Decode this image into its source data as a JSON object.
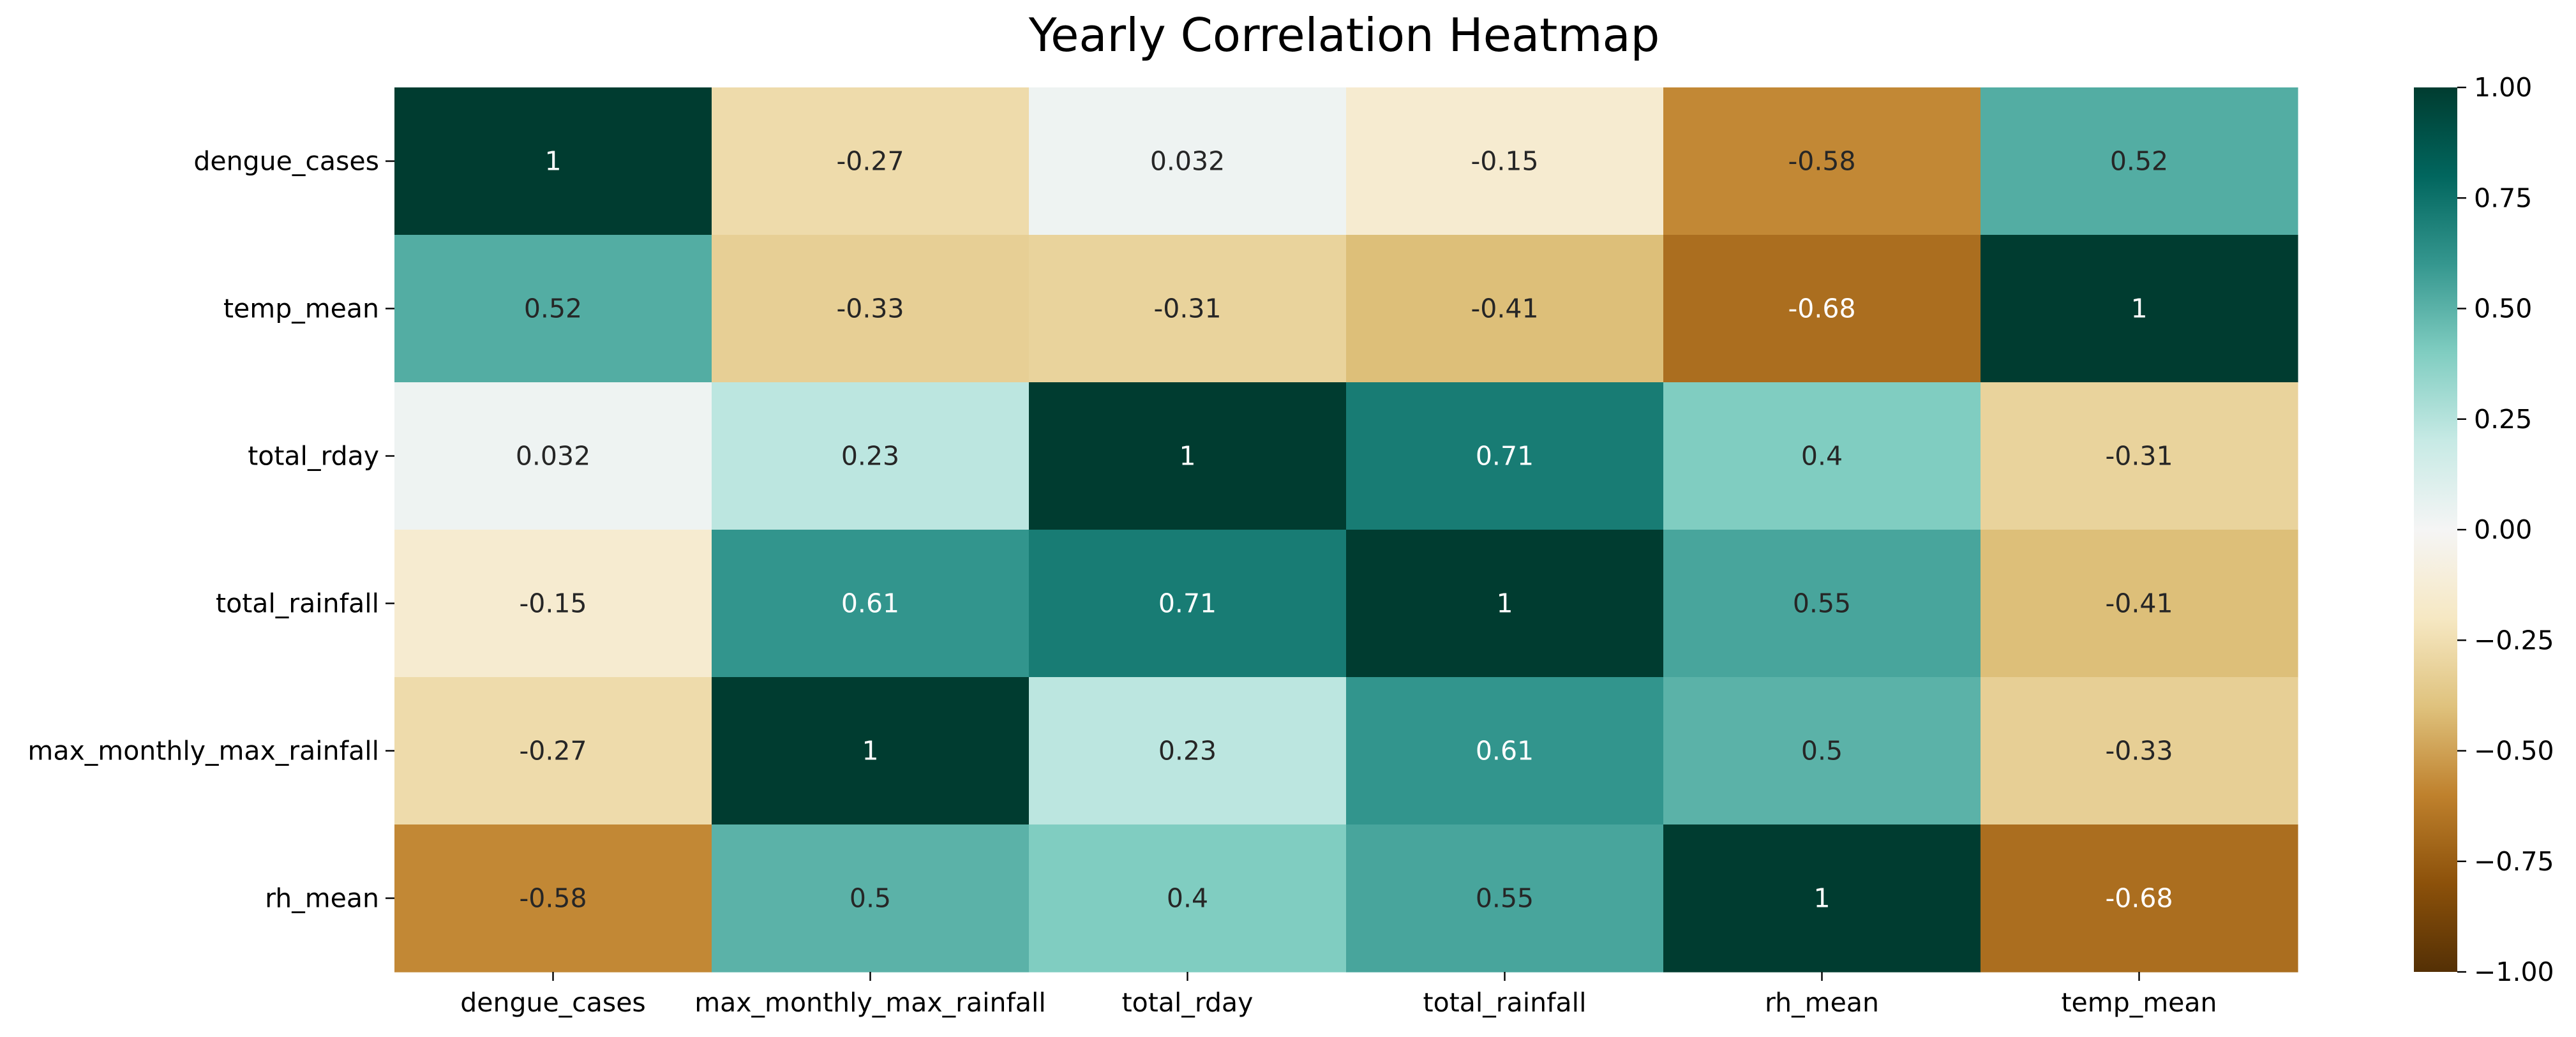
{
  "chart_data": {
    "type": "heatmap",
    "title": "Yearly Correlation Heatmap",
    "xlabel": "",
    "ylabel": "",
    "x_labels": [
      "dengue_cases",
      "max_monthly_max_rainfall",
      "total_rday",
      "total_rainfall",
      "rh_mean",
      "temp_mean"
    ],
    "y_labels": [
      "dengue_cases",
      "temp_mean",
      "total_rday",
      "total_rainfall",
      "max_monthly_max_rainfall",
      "rh_mean"
    ],
    "values": [
      [
        1,
        -0.27,
        0.032,
        -0.15,
        -0.58,
        0.52
      ],
      [
        0.52,
        -0.33,
        -0.31,
        -0.41,
        -0.68,
        1
      ],
      [
        0.032,
        0.23,
        1,
        0.71,
        0.4,
        -0.31
      ],
      [
        -0.15,
        0.61,
        0.71,
        1,
        0.55,
        -0.41
      ],
      [
        -0.27,
        1,
        0.23,
        0.61,
        0.5,
        -0.33
      ],
      [
        -0.58,
        0.5,
        0.4,
        0.55,
        1,
        -0.68
      ]
    ],
    "annotations": [
      [
        "1",
        "-0.27",
        "0.032",
        "-0.15",
        "-0.58",
        "0.52"
      ],
      [
        "0.52",
        "-0.33",
        "-0.31",
        "-0.41",
        "-0.68",
        "1"
      ],
      [
        "0.032",
        "0.23",
        "1",
        "0.71",
        "0.4",
        "-0.31"
      ],
      [
        "-0.15",
        "0.61",
        "0.71",
        "1",
        "0.55",
        "-0.41"
      ],
      [
        "-0.27",
        "1",
        "0.23",
        "0.61",
        "0.5",
        "-0.33"
      ],
      [
        "-0.58",
        "0.5",
        "0.4",
        "0.55",
        "1",
        "-0.68"
      ]
    ],
    "colormap": "BrBG",
    "colormap_stops": [
      "#543005",
      "#8c510a",
      "#bf812d",
      "#dfc27d",
      "#f6e8c3",
      "#f5f5f5",
      "#c7eae5",
      "#80cdc1",
      "#35978f",
      "#01665e",
      "#003c30"
    ],
    "vmin": -1.0,
    "vmax": 1.0,
    "colorbar_ticks": [
      "1.00",
      "0.75",
      "0.50",
      "0.25",
      "0.00",
      "−0.25",
      "−0.50",
      "−0.75",
      "−1.00"
    ],
    "legend_position": "right",
    "grid": false
  }
}
